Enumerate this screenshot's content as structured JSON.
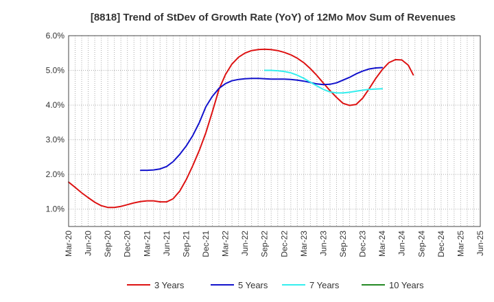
{
  "chart_data": {
    "type": "line",
    "title": "[8818]  Trend of StDev of Growth Rate (YoY) of 12Mo Mov Sum of Revenues",
    "xlabel": "",
    "ylabel": "",
    "ylim": [
      0.5,
      6.0
    ],
    "y_ticks": [
      1.0,
      2.0,
      3.0,
      4.0,
      5.0,
      6.0
    ],
    "y_tick_labels": [
      "1.0%",
      "2.0%",
      "3.0%",
      "4.0%",
      "5.0%",
      "6.0%"
    ],
    "x_range": [
      0,
      21
    ],
    "x_tick_labels": [
      "Mar-20",
      "Jun-20",
      "Sep-20",
      "Dec-20",
      "Mar-21",
      "Jun-21",
      "Sep-21",
      "Dec-21",
      "Mar-22",
      "Jun-22",
      "Sep-22",
      "Dec-22",
      "Mar-23",
      "Jun-23",
      "Sep-23",
      "Dec-23",
      "Mar-24",
      "Jun-24",
      "Sep-24",
      "Dec-24",
      "Mar-25",
      "Jun-25"
    ],
    "grid": true,
    "legend_position": "bottom",
    "series": [
      {
        "name": "3 Years",
        "color": "#dd1111",
        "points": [
          [
            0,
            1.78
          ],
          [
            0.33,
            1.63
          ],
          [
            0.67,
            1.47
          ],
          [
            1,
            1.33
          ],
          [
            1.33,
            1.2
          ],
          [
            1.67,
            1.1
          ],
          [
            2,
            1.05
          ],
          [
            2.33,
            1.05
          ],
          [
            2.67,
            1.08
          ],
          [
            3,
            1.13
          ],
          [
            3.33,
            1.18
          ],
          [
            3.67,
            1.22
          ],
          [
            4,
            1.24
          ],
          [
            4.33,
            1.24
          ],
          [
            4.67,
            1.21
          ],
          [
            5,
            1.21
          ],
          [
            5.33,
            1.3
          ],
          [
            5.67,
            1.52
          ],
          [
            6,
            1.85
          ],
          [
            6.33,
            2.25
          ],
          [
            6.67,
            2.7
          ],
          [
            7,
            3.2
          ],
          [
            7.33,
            3.8
          ],
          [
            7.67,
            4.45
          ],
          [
            8,
            4.88
          ],
          [
            8.33,
            5.18
          ],
          [
            8.67,
            5.38
          ],
          [
            9,
            5.5
          ],
          [
            9.33,
            5.57
          ],
          [
            9.67,
            5.6
          ],
          [
            10,
            5.61
          ],
          [
            10.33,
            5.6
          ],
          [
            10.67,
            5.57
          ],
          [
            11,
            5.52
          ],
          [
            11.33,
            5.45
          ],
          [
            11.67,
            5.35
          ],
          [
            12,
            5.22
          ],
          [
            12.33,
            5.05
          ],
          [
            12.67,
            4.85
          ],
          [
            13,
            4.63
          ],
          [
            13.33,
            4.42
          ],
          [
            13.67,
            4.22
          ],
          [
            14,
            4.05
          ],
          [
            14.33,
            3.99
          ],
          [
            14.67,
            4.02
          ],
          [
            15,
            4.2
          ],
          [
            15.33,
            4.47
          ],
          [
            15.67,
            4.77
          ],
          [
            16,
            5.02
          ],
          [
            16.33,
            5.22
          ],
          [
            16.67,
            5.31
          ],
          [
            17,
            5.3
          ],
          [
            17.33,
            5.15
          ],
          [
            17.58,
            4.87
          ]
        ]
      },
      {
        "name": "5 Years",
        "color": "#1111cc",
        "points": [
          [
            3.67,
            2.12
          ],
          [
            4,
            2.12
          ],
          [
            4.33,
            2.13
          ],
          [
            4.67,
            2.16
          ],
          [
            5,
            2.23
          ],
          [
            5.33,
            2.37
          ],
          [
            5.67,
            2.58
          ],
          [
            6,
            2.82
          ],
          [
            6.33,
            3.12
          ],
          [
            6.67,
            3.5
          ],
          [
            7,
            3.95
          ],
          [
            7.33,
            4.25
          ],
          [
            7.67,
            4.48
          ],
          [
            8,
            4.62
          ],
          [
            8.33,
            4.7
          ],
          [
            8.67,
            4.74
          ],
          [
            9,
            4.76
          ],
          [
            9.33,
            4.77
          ],
          [
            9.67,
            4.77
          ],
          [
            10,
            4.76
          ],
          [
            10.33,
            4.75
          ],
          [
            10.67,
            4.75
          ],
          [
            11,
            4.75
          ],
          [
            11.33,
            4.74
          ],
          [
            11.67,
            4.72
          ],
          [
            12,
            4.69
          ],
          [
            12.33,
            4.65
          ],
          [
            12.67,
            4.61
          ],
          [
            13,
            4.59
          ],
          [
            13.33,
            4.6
          ],
          [
            13.67,
            4.64
          ],
          [
            14,
            4.72
          ],
          [
            14.33,
            4.8
          ],
          [
            14.67,
            4.9
          ],
          [
            15,
            4.98
          ],
          [
            15.33,
            5.04
          ],
          [
            15.67,
            5.07
          ],
          [
            16,
            5.08
          ]
        ]
      },
      {
        "name": "7 Years",
        "color": "#33eeee",
        "points": [
          [
            10,
            5.0
          ],
          [
            10.33,
            5.0
          ],
          [
            10.67,
            4.99
          ],
          [
            11,
            4.97
          ],
          [
            11.33,
            4.93
          ],
          [
            11.67,
            4.86
          ],
          [
            12,
            4.77
          ],
          [
            12.33,
            4.66
          ],
          [
            12.67,
            4.55
          ],
          [
            13,
            4.45
          ],
          [
            13.33,
            4.38
          ],
          [
            13.67,
            4.35
          ],
          [
            14,
            4.35
          ],
          [
            14.33,
            4.37
          ],
          [
            14.67,
            4.4
          ],
          [
            15,
            4.43
          ],
          [
            15.33,
            4.45
          ],
          [
            15.67,
            4.46
          ],
          [
            16,
            4.47
          ]
        ]
      },
      {
        "name": "10 Years",
        "color": "#228822",
        "points": []
      }
    ]
  }
}
